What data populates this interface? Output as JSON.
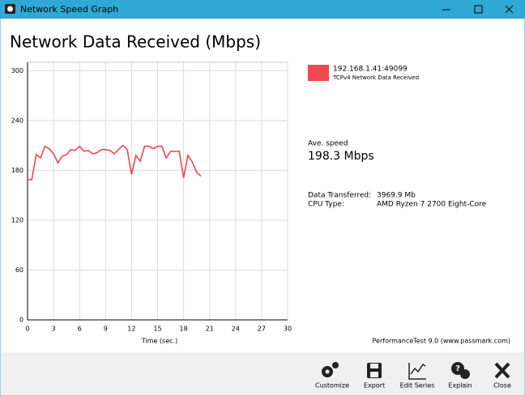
{
  "window": {
    "title": "Network Speed Graph"
  },
  "chart_data": {
    "type": "line",
    "title": "Network Data Received (Mbps)",
    "x_label": "Time (sec.)",
    "x": [
      0,
      0.5,
      1,
      1.5,
      2,
      2.5,
      3,
      3.5,
      4,
      4.5,
      5,
      5.5,
      6,
      6.5,
      7,
      7.5,
      8,
      8.5,
      9,
      9.5,
      10,
      10.5,
      11,
      11.5,
      12,
      12.5,
      13,
      13.5,
      14,
      14.5,
      15,
      15.5,
      16,
      16.5,
      17,
      17.5,
      18,
      18.5,
      19,
      19.5,
      20
    ],
    "series": [
      {
        "name": "192.168.1.41:49099",
        "description": "TCPv4 Network Data Received",
        "color": "#f0484e",
        "values": [
          169,
          169,
          199,
          195,
          209,
          206,
          200,
          189,
          197,
          199,
          205,
          204,
          209,
          203,
          204,
          200,
          201,
          205,
          205,
          204,
          200,
          205,
          210,
          205,
          175,
          198,
          191,
          209,
          209,
          206,
          209,
          209,
          195,
          203,
          203,
          203,
          171,
          198,
          190,
          178,
          173
        ]
      }
    ],
    "xlim": [
      0,
      30
    ],
    "xticks": [
      0,
      3,
      6,
      9,
      12,
      15,
      18,
      21,
      24,
      27,
      30
    ],
    "ylim": [
      0,
      310
    ],
    "yticks": [
      0,
      60,
      120,
      180,
      240,
      300
    ],
    "grid": true
  },
  "stats": {
    "avg_label": "Ave. speed",
    "avg_value": "198.3 Mbps",
    "rows": [
      [
        "Data Transferred:",
        "3969.9 Mb"
      ],
      [
        "CPU Type:",
        "AMD Ryzen 7 2700 Eight-Core"
      ]
    ]
  },
  "footer": "PerformanceTest 9.0 (www.passmark.com)",
  "toolbar": [
    "Customize",
    "Export",
    "Edit Series",
    "Explain",
    "Close"
  ]
}
